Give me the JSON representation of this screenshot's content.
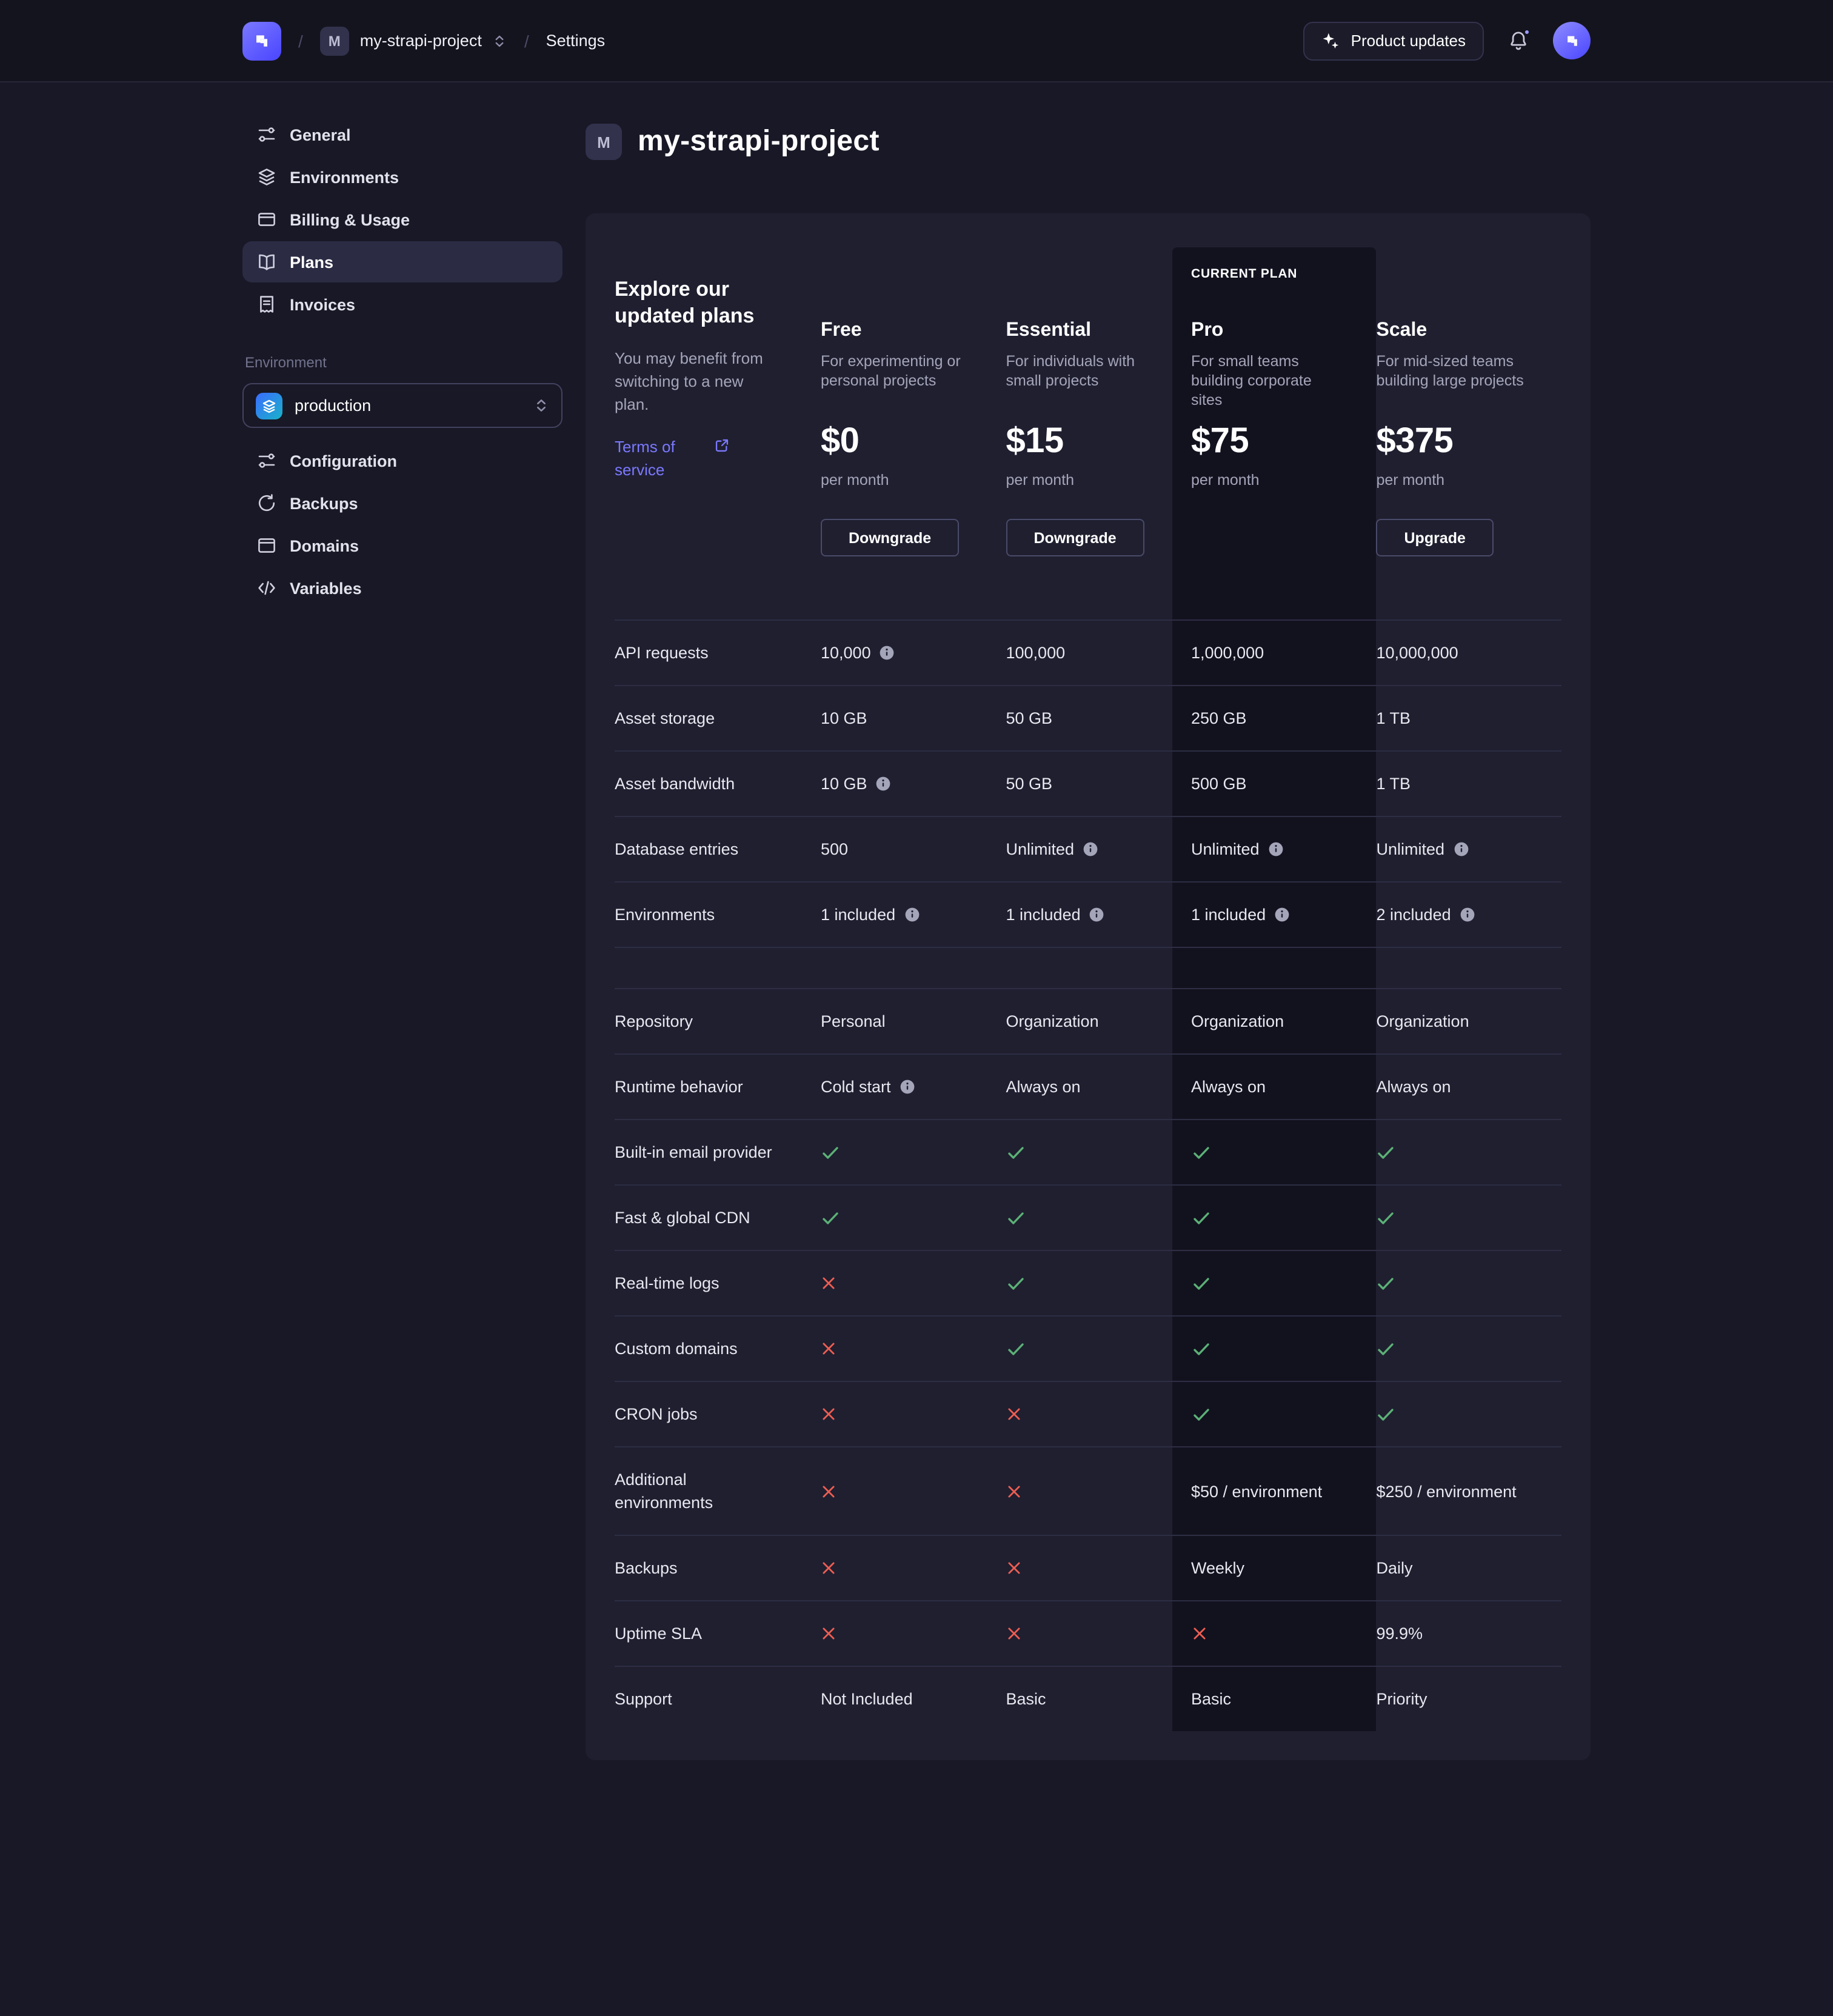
{
  "topbar": {
    "project_name": "my-strapi-project",
    "project_initial": "M",
    "settings_label": "Settings",
    "product_updates_label": "Product updates"
  },
  "sidebar": {
    "items": [
      {
        "label": "General"
      },
      {
        "label": "Environments"
      },
      {
        "label": "Billing & Usage"
      },
      {
        "label": "Plans"
      },
      {
        "label": "Invoices"
      }
    ],
    "environment_section_label": "Environment",
    "environment_selected": "production",
    "environment_items": [
      {
        "label": "Configuration"
      },
      {
        "label": "Backups"
      },
      {
        "label": "Domains"
      },
      {
        "label": "Variables"
      }
    ]
  },
  "page": {
    "title": "my-strapi-project",
    "avatar_initial": "M"
  },
  "plans": {
    "intro_title": "Explore our updated plans",
    "intro_subtitle": "You may benefit from switching to a new plan.",
    "terms_link": "Terms of service",
    "current_plan_label": "CURRENT PLAN",
    "columns": [
      {
        "name": "Free",
        "desc": "For experimenting or personal projects",
        "price": "$0",
        "period": "per month",
        "button": "Downgrade",
        "current": false
      },
      {
        "name": "Essential",
        "desc": "For individuals with small projects",
        "price": "$15",
        "period": "per month",
        "button": "Downgrade",
        "current": false
      },
      {
        "name": "Pro",
        "desc": "For small teams building corporate sites",
        "price": "$75",
        "period": "per month",
        "button": null,
        "current": true
      },
      {
        "name": "Scale",
        "desc": "For mid-sized teams building large projects",
        "price": "$375",
        "period": "per month",
        "button": "Upgrade",
        "current": false
      }
    ],
    "rows": [
      {
        "label": "API requests",
        "cells": [
          {
            "text": "10,000",
            "info": true
          },
          {
            "text": "100,000"
          },
          {
            "text": "1,000,000"
          },
          {
            "text": "10,000,000"
          }
        ]
      },
      {
        "label": "Asset storage",
        "cells": [
          {
            "text": "10 GB"
          },
          {
            "text": "50 GB"
          },
          {
            "text": "250 GB"
          },
          {
            "text": "1 TB"
          }
        ]
      },
      {
        "label": "Asset bandwidth",
        "cells": [
          {
            "text": "10 GB",
            "info": true
          },
          {
            "text": "50 GB"
          },
          {
            "text": "500 GB"
          },
          {
            "text": "1 TB"
          }
        ]
      },
      {
        "label": "Database entries",
        "cells": [
          {
            "text": "500"
          },
          {
            "text": "Unlimited",
            "info": true
          },
          {
            "text": "Unlimited",
            "info": true
          },
          {
            "text": "Unlimited",
            "info": true
          }
        ]
      },
      {
        "label": "Environments",
        "cells": [
          {
            "text": "1 included",
            "info": true
          },
          {
            "text": "1 included",
            "info": true
          },
          {
            "text": "1 included",
            "info": true
          },
          {
            "text": "2 included",
            "info": true
          }
        ]
      },
      {
        "spacer": true
      },
      {
        "label": "Repository",
        "cells": [
          {
            "text": "Personal"
          },
          {
            "text": "Organization"
          },
          {
            "text": "Organization"
          },
          {
            "text": "Organization"
          }
        ]
      },
      {
        "label": "Runtime behavior",
        "cells": [
          {
            "text": "Cold start",
            "info": true
          },
          {
            "text": "Always on"
          },
          {
            "text": "Always on"
          },
          {
            "text": "Always on"
          }
        ]
      },
      {
        "label": "Built-in email provider",
        "cells": [
          {
            "icon": "check"
          },
          {
            "icon": "check"
          },
          {
            "icon": "check"
          },
          {
            "icon": "check"
          }
        ]
      },
      {
        "label": "Fast & global CDN",
        "cells": [
          {
            "icon": "check"
          },
          {
            "icon": "check"
          },
          {
            "icon": "check"
          },
          {
            "icon": "check"
          }
        ]
      },
      {
        "label": "Real-time logs",
        "cells": [
          {
            "icon": "cross"
          },
          {
            "icon": "check"
          },
          {
            "icon": "check"
          },
          {
            "icon": "check"
          }
        ]
      },
      {
        "label": "Custom domains",
        "cells": [
          {
            "icon": "cross"
          },
          {
            "icon": "check"
          },
          {
            "icon": "check"
          },
          {
            "icon": "check"
          }
        ]
      },
      {
        "label": "CRON jobs",
        "cells": [
          {
            "icon": "cross"
          },
          {
            "icon": "cross"
          },
          {
            "icon": "check"
          },
          {
            "icon": "check"
          }
        ]
      },
      {
        "label": "Additional environments",
        "cells": [
          {
            "icon": "cross"
          },
          {
            "icon": "cross"
          },
          {
            "text": "$50 / environment"
          },
          {
            "text": "$250 / environment"
          }
        ]
      },
      {
        "label": "Backups",
        "cells": [
          {
            "icon": "cross"
          },
          {
            "icon": "cross"
          },
          {
            "text": "Weekly"
          },
          {
            "text": "Daily"
          }
        ]
      },
      {
        "label": "Uptime SLA",
        "cells": [
          {
            "icon": "cross"
          },
          {
            "icon": "cross"
          },
          {
            "icon": "cross"
          },
          {
            "text": "99.9%"
          }
        ]
      },
      {
        "label": "Support",
        "cells": [
          {
            "text": "Not Included"
          },
          {
            "text": "Basic"
          },
          {
            "text": "Basic"
          },
          {
            "text": "Priority"
          }
        ]
      }
    ]
  },
  "colors": {
    "accent": "#4945ff",
    "link": "#7b79ff",
    "success": "#5cb176",
    "danger": "#ee5e52"
  }
}
